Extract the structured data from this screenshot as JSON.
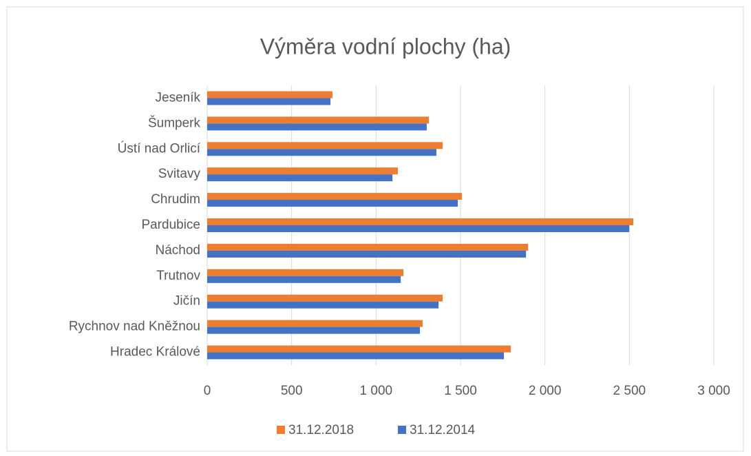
{
  "chart_data": {
    "type": "bar",
    "orientation": "horizontal",
    "title": "Výměra vodní plochy (ha)",
    "categories": [
      "Jeseník",
      "Šumperk",
      "Ústí nad Orlicí",
      "Svitavy",
      "Chrudim",
      "Pardubice",
      "Náchod",
      "Trutnov",
      "Jičín",
      "Rychnov nad Kněžnou",
      "Hradec Králové"
    ],
    "series": [
      {
        "name": "31.12.2018",
        "color": "#ed7d31",
        "values": [
          742,
          1313,
          1394,
          1129,
          1508,
          2523,
          1900,
          1162,
          1394,
          1276,
          1798
        ]
      },
      {
        "name": "31.12.2014",
        "color": "#4472c4",
        "values": [
          730,
          1300,
          1357,
          1097,
          1484,
          2499,
          1888,
          1146,
          1370,
          1260,
          1757
        ]
      }
    ],
    "xlim": [
      0,
      3000
    ],
    "xticks": [
      0,
      500,
      {
        "value": 1000,
        "label": "1 000"
      },
      {
        "value": 1500,
        "label": "1 500"
      },
      {
        "value": 2000,
        "label": "2 000"
      },
      {
        "value": 2500,
        "label": "2 500"
      },
      {
        "value": 3000,
        "label": "3 000"
      }
    ],
    "grid": true,
    "legend": "bottom"
  }
}
